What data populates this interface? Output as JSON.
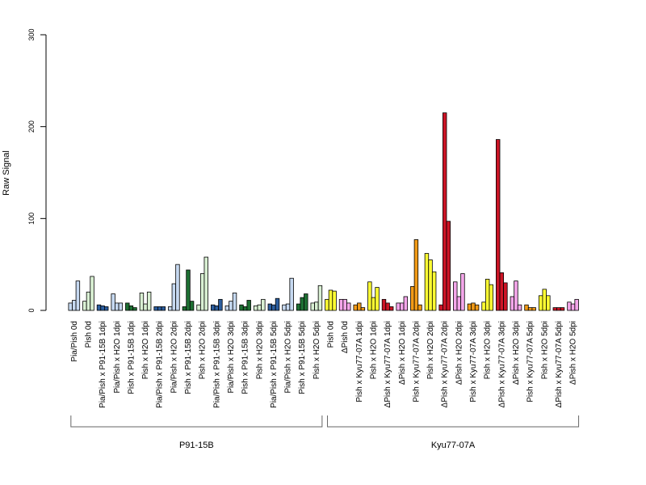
{
  "chart_data": {
    "type": "bar",
    "title": "",
    "xlabel": "",
    "ylabel": "Raw Signal",
    "ylim": [
      0,
      300
    ],
    "yticks": [
      0,
      100,
      200,
      300
    ],
    "groups": [
      {
        "label": "Pia/Pish 0d",
        "color": "#c6d9f1",
        "values": [
          8,
          11,
          32
        ]
      },
      {
        "label": "Pish 0d",
        "color": "#d9f0d3",
        "values": [
          10,
          20,
          37
        ]
      },
      {
        "label": "Pia/Pish x P91-15B 1dpi",
        "color": "#2d5fa0",
        "values": [
          6,
          5,
          4
        ]
      },
      {
        "label": "Pia/Pish x H2O 1dpi",
        "color": "#c6d9f1",
        "values": [
          18,
          8,
          8
        ]
      },
      {
        "label": "Pish x P91-15B 1dpi",
        "color": "#1e7033",
        "values": [
          8,
          5,
          3
        ]
      },
      {
        "label": "Pish x H2O 1dpi",
        "color": "#d9f0d3",
        "values": [
          19,
          7,
          20
        ]
      },
      {
        "label": "Pia/Pish x P91-15B 2dpi",
        "color": "#2d5fa0",
        "values": [
          4,
          4,
          4
        ]
      },
      {
        "label": "Pia/Pish x H2O 2dpi",
        "color": "#c6d9f1",
        "values": [
          4,
          29,
          50
        ]
      },
      {
        "label": "Pish x P91-15B 2dpi",
        "color": "#1e7033",
        "values": [
          4,
          44,
          10
        ]
      },
      {
        "label": "Pish x H2O 2dpi",
        "color": "#d9f0d3",
        "values": [
          6,
          40,
          58
        ]
      },
      {
        "label": "Pia/Pish x P91-15B 3dpi",
        "color": "#2d5fa0",
        "values": [
          6,
          5,
          12
        ]
      },
      {
        "label": "Pia/Pish x H2O 3dpi",
        "color": "#c6d9f1",
        "values": [
          5,
          10,
          19
        ]
      },
      {
        "label": "Pish x P91-15B 3dpi",
        "color": "#1e7033",
        "values": [
          6,
          4,
          11
        ]
      },
      {
        "label": "Pish x H2O 3dpi",
        "color": "#d9f0d3",
        "values": [
          5,
          6,
          12
        ]
      },
      {
        "label": "Pia/Pish x P91-15B 5dpi",
        "color": "#2d5fa0",
        "values": [
          7,
          6,
          13
        ]
      },
      {
        "label": "Pia/Pish x H2O 5dpi",
        "color": "#c6d9f1",
        "values": [
          6,
          7,
          35
        ]
      },
      {
        "label": "Pish x P91-15B 5dpi",
        "color": "#1e7033",
        "values": [
          7,
          14,
          18
        ]
      },
      {
        "label": "Pish x H2O 5dpi",
        "color": "#d9f0d3",
        "values": [
          8,
          9,
          27
        ]
      },
      {
        "label": "Pish 0d",
        "color": "#ffff33",
        "values": [
          12,
          22,
          21
        ]
      },
      {
        "label": "ΔPish 0d",
        "color": "#f4a6ea",
        "values": [
          12,
          12,
          8
        ]
      },
      {
        "label": "Pish x Kyu77-07A 1dpi",
        "color": "#f29b17",
        "values": [
          6,
          8,
          3
        ]
      },
      {
        "label": "Pish x H2O 1dpi",
        "color": "#ffff33",
        "values": [
          31,
          14,
          25
        ]
      },
      {
        "label": "ΔPish x Kyu77-07A 1dpi",
        "color": "#cc1526",
        "values": [
          12,
          8,
          4
        ]
      },
      {
        "label": "ΔPish x H2O 1dpi",
        "color": "#f4a6ea",
        "values": [
          8,
          8,
          15
        ]
      },
      {
        "label": "Pish x Kyu77-07A 2dpi",
        "color": "#f29b17",
        "values": [
          26,
          77,
          6
        ]
      },
      {
        "label": "Pish x H2O 2dpi",
        "color": "#ffff33",
        "values": [
          62,
          55,
          42
        ]
      },
      {
        "label": "ΔPish x Kyu77-07A 2dpi",
        "color": "#cc1526",
        "values": [
          6,
          215,
          97
        ]
      },
      {
        "label": "ΔPish x H2O 2dpi",
        "color": "#f4a6ea",
        "values": [
          31,
          15,
          40
        ]
      },
      {
        "label": "Pish x Kyu77-07A 3dpi",
        "color": "#f29b17",
        "values": [
          7,
          8,
          6
        ]
      },
      {
        "label": "Pish x H2O 3dpi",
        "color": "#ffff33",
        "values": [
          9,
          34,
          28
        ]
      },
      {
        "label": "ΔPish x Kyu77-07A 3dpi",
        "color": "#cc1526",
        "values": [
          186,
          41,
          30
        ]
      },
      {
        "label": "ΔPish x H2O 3dpi",
        "color": "#f4a6ea",
        "values": [
          15,
          32,
          6
        ]
      },
      {
        "label": "Pish x Kyu77-07A 5dpi",
        "color": "#f29b17",
        "values": [
          6,
          3,
          3
        ]
      },
      {
        "label": "Pish x H2O 5dpi",
        "color": "#ffff33",
        "values": [
          16,
          23,
          16
        ]
      },
      {
        "label": "ΔPish x Kyu77-07A 5dpi",
        "color": "#cc1526",
        "values": [
          3,
          3,
          3
        ]
      },
      {
        "label": "ΔPish x H2O 5dpi",
        "color": "#f4a6ea",
        "values": [
          9,
          7,
          12
        ]
      }
    ],
    "brackets": [
      {
        "label": "P91-15B",
        "from_group": 0,
        "to_group": 17
      },
      {
        "label": "Kyu77-07A",
        "from_group": 18,
        "to_group": 35
      }
    ]
  }
}
